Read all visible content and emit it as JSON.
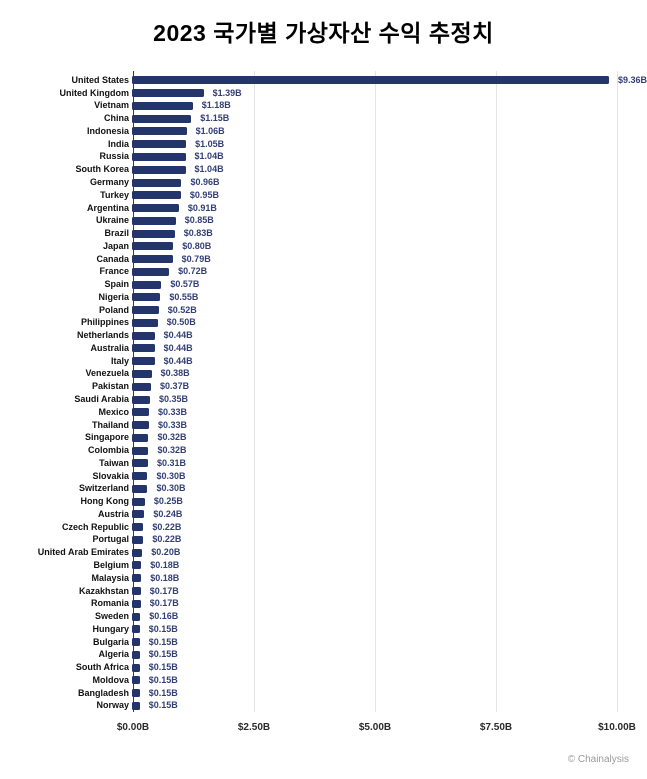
{
  "chart_data": {
    "type": "bar",
    "orientation": "horizontal",
    "title": "2023 국가별 가상자산 수익 추정치",
    "categories": [
      "United States",
      "United Kingdom",
      "Vietnam",
      "China",
      "Indonesia",
      "India",
      "Russia",
      "South Korea",
      "Germany",
      "Turkey",
      "Argentina",
      "Ukraine",
      "Brazil",
      "Japan",
      "Canada",
      "France",
      "Spain",
      "Nigeria",
      "Poland",
      "Philippines",
      "Netherlands",
      "Australia",
      "Italy",
      "Venezuela",
      "Pakistan",
      "Saudi Arabia",
      "Mexico",
      "Thailand",
      "Singapore",
      "Colombia",
      "Taiwan",
      "Slovakia",
      "Switzerland",
      "Hong Kong",
      "Austria",
      "Czech Republic",
      "Portugal",
      "United Arab Emirates",
      "Belgium",
      "Malaysia",
      "Kazakhstan",
      "Romania",
      "Sweden",
      "Hungary",
      "Bulgaria",
      "Algeria",
      "South Africa",
      "Moldova",
      "Bangladesh",
      "Norway"
    ],
    "values": [
      9.36,
      1.39,
      1.18,
      1.15,
      1.06,
      1.05,
      1.04,
      1.04,
      0.96,
      0.95,
      0.91,
      0.85,
      0.83,
      0.8,
      0.79,
      0.72,
      0.57,
      0.55,
      0.52,
      0.5,
      0.44,
      0.44,
      0.44,
      0.38,
      0.37,
      0.35,
      0.33,
      0.33,
      0.32,
      0.32,
      0.31,
      0.3,
      0.3,
      0.25,
      0.24,
      0.22,
      0.22,
      0.2,
      0.18,
      0.18,
      0.17,
      0.17,
      0.16,
      0.15,
      0.15,
      0.15,
      0.15,
      0.15,
      0.15,
      0.15
    ],
    "value_labels": [
      "$9.36B",
      "$1.39B",
      "$1.18B",
      "$1.15B",
      "$1.06B",
      "$1.05B",
      "$1.04B",
      "$1.04B",
      "$0.96B",
      "$0.95B",
      "$0.91B",
      "$0.85B",
      "$0.83B",
      "$0.80B",
      "$0.79B",
      "$0.72B",
      "$0.57B",
      "$0.55B",
      "$0.52B",
      "$0.50B",
      "$0.44B",
      "$0.44B",
      "$0.44B",
      "$0.38B",
      "$0.37B",
      "$0.35B",
      "$0.33B",
      "$0.33B",
      "$0.32B",
      "$0.32B",
      "$0.31B",
      "$0.30B",
      "$0.30B",
      "$0.25B",
      "$0.24B",
      "$0.22B",
      "$0.22B",
      "$0.20B",
      "$0.18B",
      "$0.18B",
      "$0.17B",
      "$0.17B",
      "$0.16B",
      "$0.15B",
      "$0.15B",
      "$0.15B",
      "$0.15B",
      "$0.15B",
      "$0.15B",
      "$0.15B"
    ],
    "xlabel": "",
    "ylabel": "",
    "xlim": [
      0,
      10
    ],
    "x_ticks": [
      {
        "value": 0.0,
        "label": "$0.00B"
      },
      {
        "value": 2.5,
        "label": "$2.50B"
      },
      {
        "value": 5.0,
        "label": "$5.00B"
      },
      {
        "value": 7.5,
        "label": "$7.50B"
      },
      {
        "value": 10.0,
        "label": "$10.00B"
      }
    ],
    "grid": "vertical-light-gray",
    "legend": "none",
    "colors": {
      "bar": "#24356b",
      "value_label": "#333f75",
      "category_label": "#111111",
      "tick_label": "#2b2b2b",
      "gridline": "#e4e4e4",
      "zero_axis": "#3c3c3c",
      "background": "#ffffff"
    },
    "source": "© Chainalysis"
  }
}
